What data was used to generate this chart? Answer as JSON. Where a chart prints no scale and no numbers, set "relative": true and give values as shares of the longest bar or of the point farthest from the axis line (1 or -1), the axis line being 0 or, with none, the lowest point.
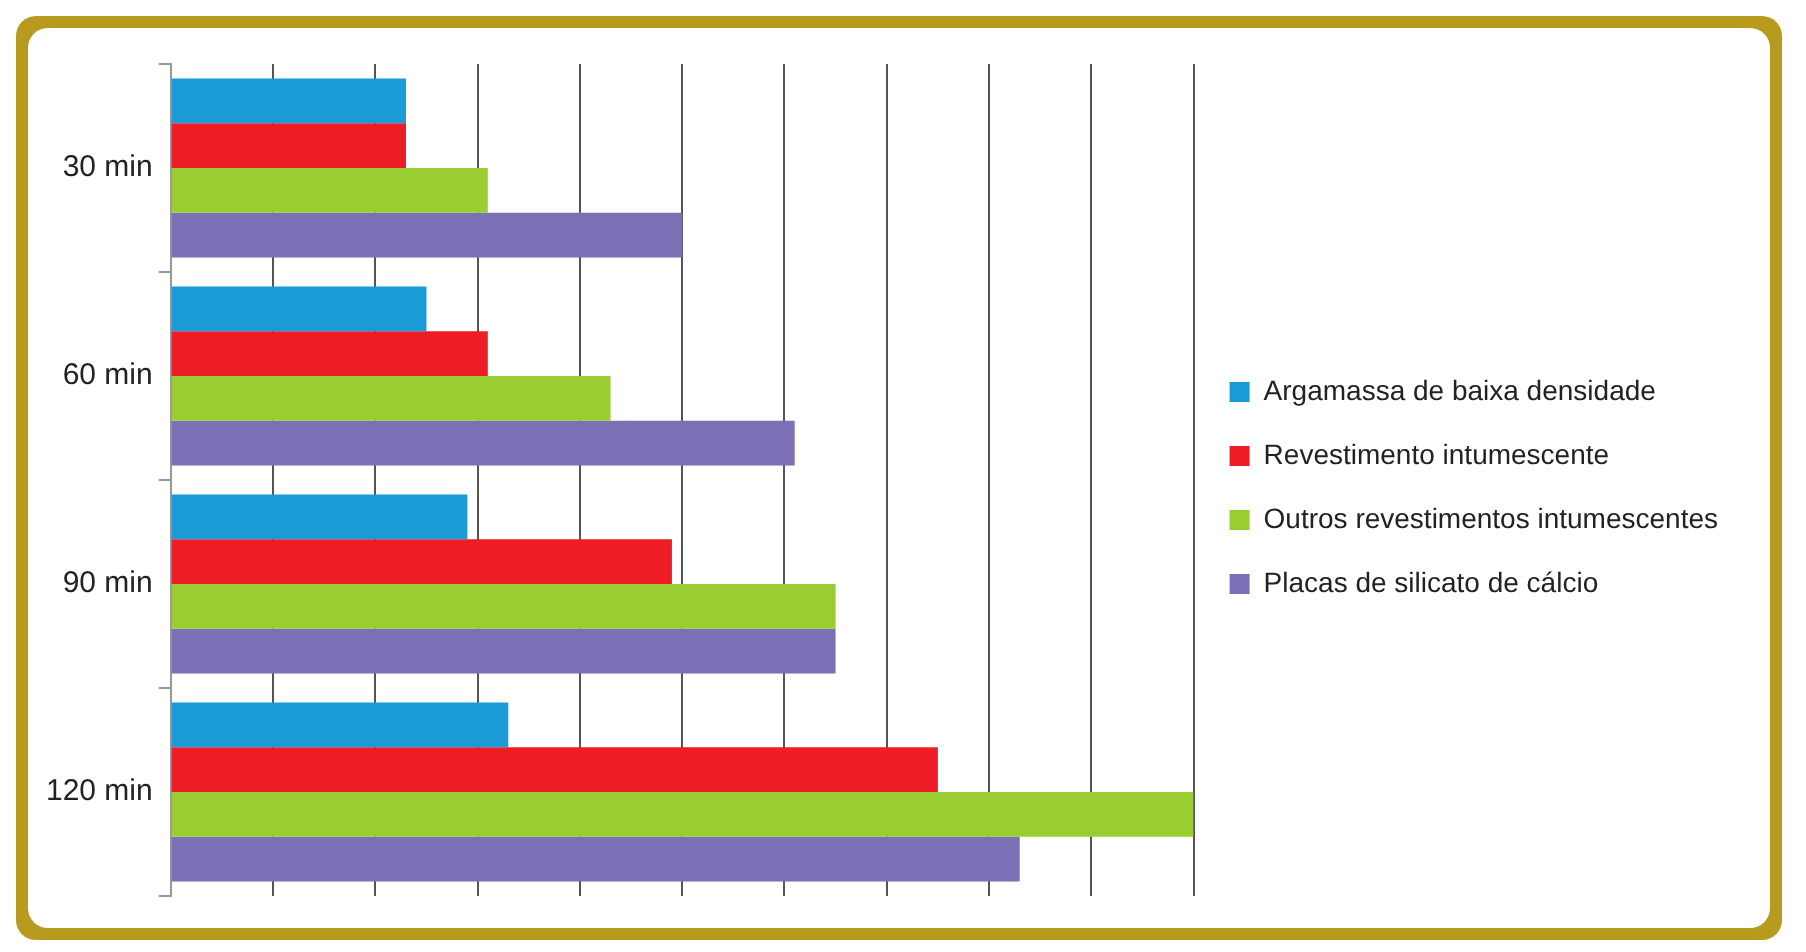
{
  "chart_data": {
    "type": "bar",
    "orientation": "horizontal",
    "relative": true,
    "grid": "x",
    "legend": "right",
    "categories": [
      "30 min",
      "60 min",
      "90 min",
      "120 min"
    ],
    "series": [
      {
        "name": "Argamassa de baixa densidade",
        "color": "#1a9ad6",
        "values": [
          0.23,
          0.25,
          0.29,
          0.33
        ]
      },
      {
        "name": "Revestimento intumescente",
        "color": "#ee1c25",
        "values": [
          0.23,
          0.31,
          0.49,
          0.75
        ]
      },
      {
        "name": "Outros revestimentos intumescentes",
        "color": "#9acd32",
        "values": [
          0.31,
          0.43,
          0.65,
          1
        ]
      },
      {
        "name": "Placas de silicato de cálcio",
        "color": "#7b6fb5",
        "values": [
          0.5,
          0.61,
          0.65,
          0.83
        ]
      }
    ]
  }
}
